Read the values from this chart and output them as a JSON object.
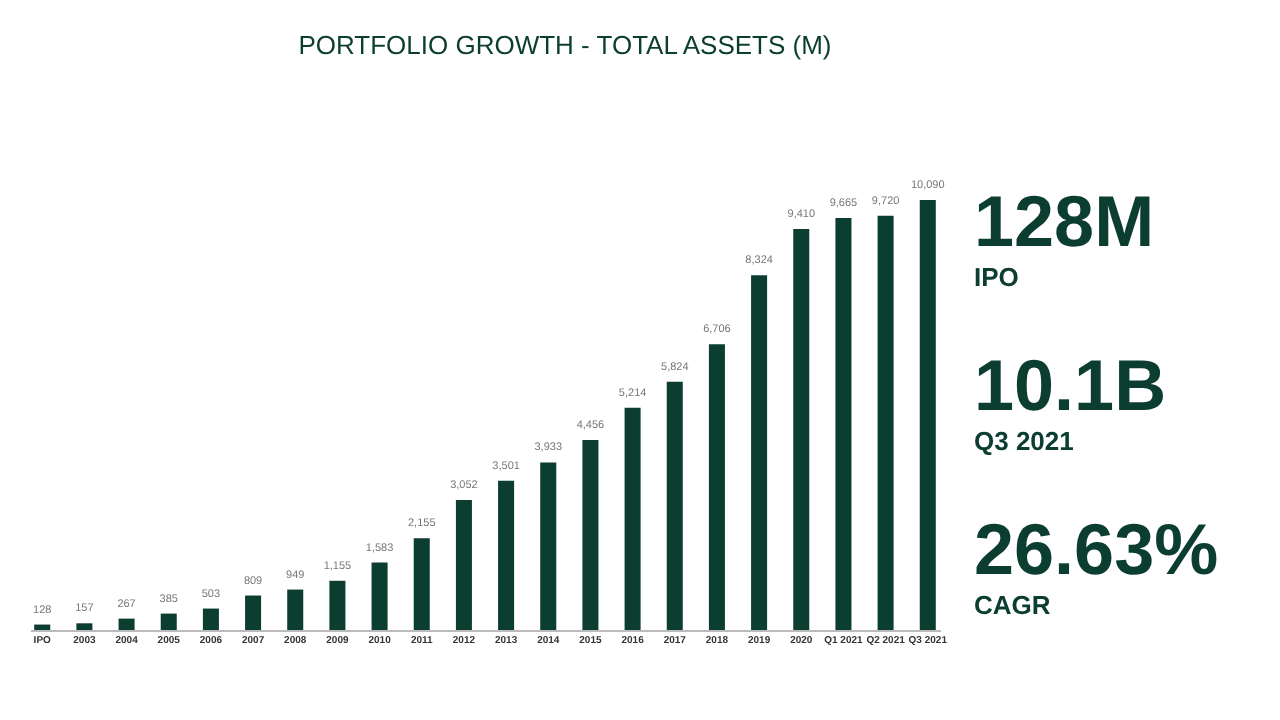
{
  "chart_data": [
    {
      "type": "bar",
      "title": "PORTFOLIO GROWTH - TOTAL ASSETS (M)",
      "categories": [
        "IPO",
        "2003",
        "2004",
        "2005",
        "2006",
        "2007",
        "2008",
        "2009",
        "2010",
        "2011",
        "2012",
        "2013",
        "2014",
        "2015",
        "2016",
        "2017",
        "2018",
        "2019",
        "2020",
        "Q1 2021",
        "Q2 2021",
        "Q3 2021"
      ],
      "values": [
        128,
        157,
        267,
        385,
        503,
        809,
        949,
        1155,
        1583,
        2155,
        3052,
        3501,
        3933,
        4456,
        5214,
        5824,
        6706,
        8324,
        9410,
        9665,
        9720,
        10090
      ],
      "color": "#0b3d30",
      "tick_labels": "x",
      "value_labels": [
        "128",
        "157",
        "267",
        "385",
        "503",
        "809",
        "949",
        "1,155",
        "1,583",
        "2,155",
        "3,052",
        "3,501",
        "3,933",
        "4,456",
        "5,214",
        "5,824",
        "6,706",
        "8,324",
        "9,410",
        "9,665",
        "9,720",
        "10,090"
      ]
    },
    {
      "type": "other",
      "annotations": [
        "128M",
        "IPO",
        "10.1B",
        "Q3 2021",
        "26.63%",
        "CAGR"
      ]
    }
  ]
}
